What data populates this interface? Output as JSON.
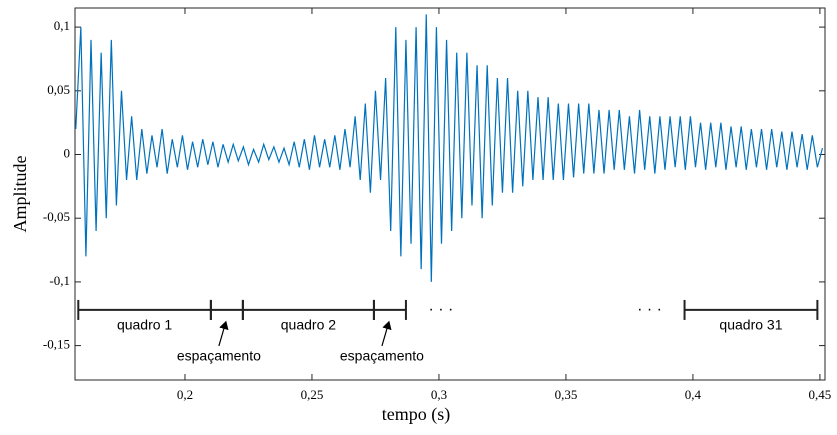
{
  "chart_data": {
    "type": "line",
    "xlabel": "tempo (s)",
    "ylabel": "Amplitude",
    "x": [
      0.157,
      0.159,
      0.161,
      0.163,
      0.165,
      0.167,
      0.169,
      0.171,
      0.173,
      0.175,
      0.177,
      0.179,
      0.181,
      0.183,
      0.185,
      0.187,
      0.189,
      0.191,
      0.193,
      0.195,
      0.197,
      0.199,
      0.201,
      0.203,
      0.205,
      0.207,
      0.209,
      0.211,
      0.213,
      0.215,
      0.217,
      0.219,
      0.221,
      0.223,
      0.225,
      0.227,
      0.229,
      0.231,
      0.233,
      0.235,
      0.237,
      0.239,
      0.241,
      0.243,
      0.245,
      0.247,
      0.249,
      0.251,
      0.253,
      0.255,
      0.257,
      0.259,
      0.261,
      0.263,
      0.265,
      0.267,
      0.269,
      0.271,
      0.273,
      0.275,
      0.277,
      0.279,
      0.281,
      0.283,
      0.285,
      0.287,
      0.289,
      0.291,
      0.293,
      0.295,
      0.297,
      0.299,
      0.301,
      0.303,
      0.305,
      0.307,
      0.309,
      0.311,
      0.313,
      0.315,
      0.317,
      0.319,
      0.321,
      0.323,
      0.325,
      0.327,
      0.329,
      0.331,
      0.333,
      0.335,
      0.337,
      0.339,
      0.341,
      0.343,
      0.345,
      0.347,
      0.349,
      0.351,
      0.353,
      0.355,
      0.357,
      0.359,
      0.361,
      0.363,
      0.365,
      0.367,
      0.369,
      0.371,
      0.373,
      0.375,
      0.377,
      0.379,
      0.381,
      0.383,
      0.385,
      0.387,
      0.389,
      0.391,
      0.393,
      0.395,
      0.397,
      0.399,
      0.401,
      0.403,
      0.405,
      0.407,
      0.409,
      0.411,
      0.413,
      0.415,
      0.417,
      0.419,
      0.421,
      0.423,
      0.425,
      0.427,
      0.429,
      0.431,
      0.433,
      0.435,
      0.437,
      0.439,
      0.441,
      0.443,
      0.445,
      0.447,
      0.449,
      0.451
    ],
    "series": [
      {
        "color": "#0072bd",
        "values": [
          0.02,
          0.1,
          -0.08,
          0.09,
          -0.06,
          0.08,
          -0.05,
          0.09,
          -0.04,
          0.05,
          -0.02,
          0.03,
          -0.02,
          0.02,
          -0.015,
          0.015,
          -0.01,
          0.02,
          -0.015,
          0.012,
          -0.01,
          0.015,
          -0.012,
          0.01,
          -0.01,
          0.012,
          -0.008,
          0.01,
          -0.01,
          0.008,
          -0.006,
          0.008,
          -0.005,
          0.006,
          -0.008,
          0.004,
          -0.006,
          0.008,
          -0.004,
          0.006,
          -0.006,
          0.005,
          -0.008,
          0.01,
          -0.01,
          0.012,
          -0.012,
          0.015,
          -0.01,
          0.012,
          -0.01,
          0.015,
          -0.012,
          0.02,
          -0.01,
          0.03,
          -0.02,
          0.04,
          -0.03,
          0.05,
          -0.02,
          0.06,
          -0.06,
          0.1,
          -0.08,
          0.09,
          -0.07,
          0.1,
          -0.09,
          0.11,
          -0.1,
          0.1,
          -0.07,
          0.09,
          -0.06,
          0.08,
          -0.05,
          0.08,
          -0.04,
          0.07,
          -0.05,
          0.07,
          -0.04,
          0.06,
          -0.03,
          0.06,
          -0.03,
          0.05,
          -0.025,
          0.05,
          -0.02,
          0.045,
          -0.02,
          0.045,
          -0.02,
          0.04,
          -0.02,
          0.04,
          -0.018,
          0.04,
          -0.015,
          0.04,
          -0.015,
          0.035,
          -0.015,
          0.035,
          -0.012,
          0.035,
          -0.012,
          0.03,
          -0.015,
          0.035,
          -0.012,
          0.03,
          -0.015,
          0.03,
          -0.012,
          0.03,
          -0.01,
          0.03,
          -0.012,
          0.03,
          -0.01,
          0.025,
          -0.012,
          0.025,
          -0.01,
          0.025,
          -0.012,
          0.022,
          -0.01,
          0.022,
          -0.012,
          0.02,
          -0.01,
          0.02,
          -0.012,
          0.02,
          -0.01,
          0.018,
          -0.012,
          0.018,
          -0.01,
          0.016,
          -0.012,
          0.015,
          -0.01,
          0.005
        ]
      }
    ],
    "xlim": [
      0.1567,
      0.452
    ],
    "ylim": [
      -0.177,
      0.115
    ],
    "xticks": [
      {
        "value": 0.2,
        "label": "0,2"
      },
      {
        "value": 0.25,
        "label": "0,25"
      },
      {
        "value": 0.3,
        "label": "0,3"
      },
      {
        "value": 0.35,
        "label": "0,35"
      },
      {
        "value": 0.4,
        "label": "0,4"
      },
      {
        "value": 0.45,
        "label": "0,45"
      }
    ],
    "yticks": [
      {
        "value": -0.15,
        "label": "-0,15"
      },
      {
        "value": -0.1,
        "label": "-0,1"
      },
      {
        "value": -0.05,
        "label": "-0,05"
      },
      0,
      {
        "value": 0.05,
        "label": "0,05"
      },
      {
        "value": 0.1,
        "label": "0,1"
      }
    ],
    "frame_level": -0.122,
    "frames": [
      {
        "label": "quadro 1",
        "start": 0.158,
        "end": 0.2102
      },
      {
        "label": "quadro 2",
        "start": 0.2228,
        "end": 0.2744
      },
      {
        "label": "quadro 31",
        "start": 0.3967,
        "end": 0.449
      }
    ],
    "spacings": [
      {
        "label": "espaçamento",
        "start": 0.2102,
        "end": 0.2228
      },
      {
        "label": "espaçamento",
        "start": 0.2744,
        "end": 0.287
      }
    ],
    "ellipses": [
      "· · ·",
      "· · ·"
    ]
  }
}
